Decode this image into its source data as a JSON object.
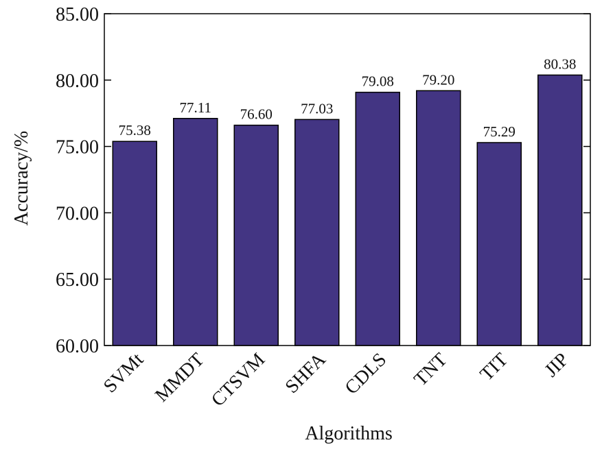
{
  "chart_data": {
    "type": "bar",
    "title": "",
    "xlabel": "Algorithms",
    "ylabel": "Accuracy/%",
    "categories": [
      "SVMt",
      "MMDT",
      "CTSVM",
      "SHFA",
      "CDLS",
      "TNT",
      "TIT",
      "JIP"
    ],
    "values": [
      75.38,
      77.11,
      76.6,
      77.03,
      79.08,
      79.2,
      75.29,
      80.38
    ],
    "value_labels": [
      "75.38",
      "77.11",
      "76.60",
      "77.03",
      "79.08",
      "79.20",
      "75.29",
      "80.38"
    ],
    "ylim": [
      60,
      85
    ],
    "yticks": [
      60,
      65,
      70,
      75,
      80,
      85
    ],
    "ytick_labels": [
      "60.00",
      "65.00",
      "70.00",
      "75.00",
      "80.00",
      "85.00"
    ],
    "grid": false,
    "bar_color": "#433583",
    "bar_edge_color": "#000000"
  }
}
